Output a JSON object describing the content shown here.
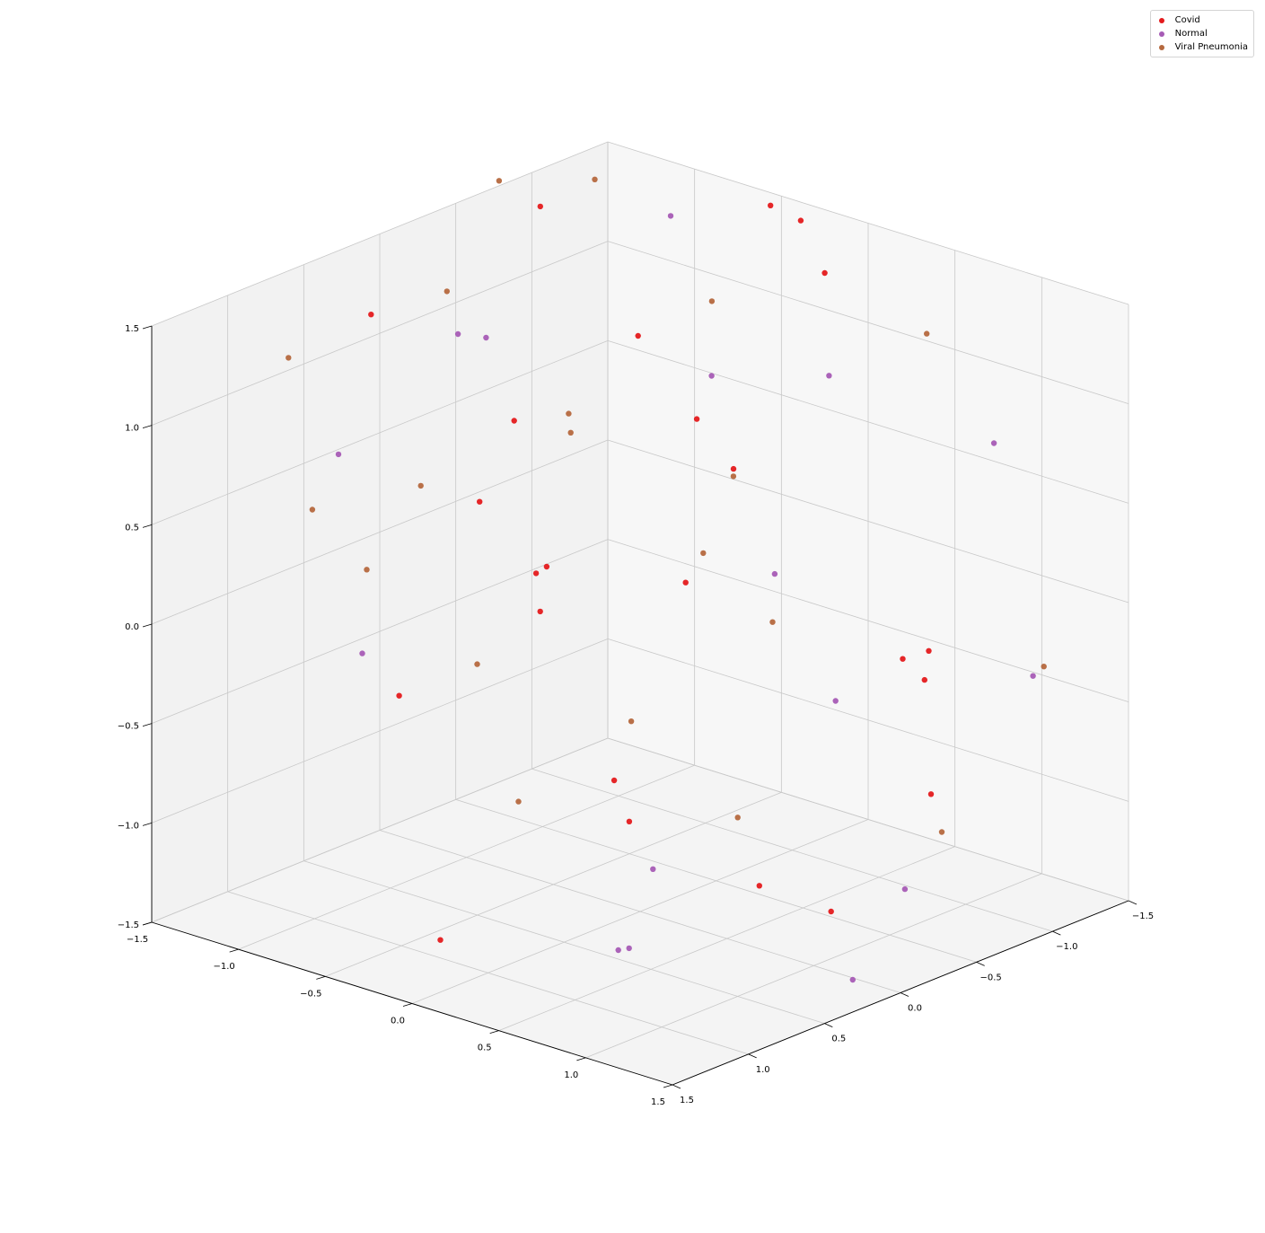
{
  "chart_data": {
    "type": "scatter",
    "projection": "3d",
    "title": "",
    "xlabel": "",
    "ylabel": "",
    "zlabel": "",
    "xlim": [
      -1.5,
      1.5
    ],
    "ylim": [
      -1.5,
      1.5
    ],
    "zlim": [
      -1.5,
      1.5
    ],
    "xticks": [
      "−1.5",
      "−1.0",
      "−0.5",
      "0.0",
      "0.5",
      "1.0",
      "1.5"
    ],
    "yticks": [
      "−1.5",
      "−1.0",
      "−0.5",
      "0.0",
      "0.5",
      "1.0",
      "1.5"
    ],
    "zticks": [
      "−1.5",
      "−1.0",
      "−0.5",
      "0.0",
      "0.5",
      "1.0",
      "1.5"
    ],
    "grid": true,
    "legend_position": "top-right",
    "series": [
      {
        "name": "Covid",
        "color": "#e41a1c",
        "points": [
          [
            -1.2,
            -0.3,
            1.6
          ],
          [
            -0.6,
            0.4,
            1.9
          ],
          [
            0.2,
            -0.4,
            2.0
          ],
          [
            -1.1,
            0.1,
            1.4
          ],
          [
            -0.9,
            -0.8,
            0.9
          ],
          [
            0.6,
            -0.2,
            1.1
          ],
          [
            1.0,
            0.3,
            0.4
          ],
          [
            -1.4,
            -0.9,
            0.3
          ],
          [
            -0.2,
            -1.1,
            0.2
          ],
          [
            0.5,
            0.7,
            0.5
          ],
          [
            -0.7,
            0.9,
            -0.2
          ],
          [
            0.9,
            -0.6,
            -0.3
          ],
          [
            -1.3,
            0.5,
            -0.6
          ],
          [
            0.3,
            0.2,
            -0.9
          ],
          [
            -0.4,
            -0.5,
            -1.1
          ],
          [
            1.2,
            -0.1,
            -1.3
          ],
          [
            -1.0,
            0.8,
            -1.0
          ],
          [
            0.0,
            1.1,
            -1.2
          ],
          [
            0.7,
            1.3,
            -0.8
          ],
          [
            -0.3,
            1.4,
            0.1
          ],
          [
            0.4,
            -1.2,
            1.3
          ],
          [
            -0.8,
            -1.3,
            -0.4
          ],
          [
            1.3,
            0.6,
            0.8
          ],
          [
            -0.5,
            0.1,
            0.6
          ]
        ]
      },
      {
        "name": "Normal",
        "color": "#a65bb5",
        "points": [
          [
            -1.0,
            -0.7,
            1.5
          ],
          [
            0.9,
            1.2,
            1.8
          ],
          [
            -1.3,
            0.9,
            0.7
          ],
          [
            0.2,
            1.4,
            -1.4
          ],
          [
            -0.6,
            1.0,
            -1.3
          ],
          [
            1.1,
            0.9,
            -1.1
          ],
          [
            -1.4,
            -0.1,
            -0.9
          ],
          [
            0.5,
            -1.3,
            0.6
          ],
          [
            -0.2,
            0.6,
            0.3
          ],
          [
            0.8,
            -0.9,
            -0.2
          ],
          [
            -0.9,
            0.3,
            1.0
          ],
          [
            1.4,
            1.3,
            -0.5
          ],
          [
            0.1,
            -0.8,
            1.2
          ],
          [
            -1.1,
            1.3,
            -0.3
          ],
          [
            0.6,
            0.4,
            -1.4
          ],
          [
            -0.4,
            -1.4,
            0.9
          ]
        ]
      },
      {
        "name": "Viral Pneumonia",
        "color": "#b5683e",
        "points": [
          [
            -0.1,
            -0.9,
            1.9
          ],
          [
            0.7,
            -0.5,
            1.7
          ],
          [
            -1.2,
            0.6,
            1.2
          ],
          [
            1.1,
            -0.3,
            0.9
          ],
          [
            -0.7,
            -0.2,
            1.3
          ],
          [
            0.3,
            0.8,
            1.0
          ],
          [
            -1.4,
            1.1,
            -0.4
          ],
          [
            0.9,
            -1.1,
            0.5
          ],
          [
            -0.5,
            1.3,
            -0.9
          ],
          [
            1.3,
            0.2,
            0.2
          ],
          [
            -0.9,
            -1.2,
            0.4
          ],
          [
            0.0,
            -0.4,
            0.8
          ],
          [
            0.5,
            1.0,
            -0.6
          ],
          [
            -1.1,
            -0.6,
            -0.2
          ],
          [
            1.2,
            1.0,
            0.1
          ],
          [
            -0.3,
            0.5,
            0.0
          ],
          [
            0.8,
            0.0,
            -0.7
          ],
          [
            -1.3,
            -1.4,
            1.4
          ],
          [
            0.2,
            -1.4,
            -0.1
          ],
          [
            1.4,
            -0.8,
            1.5
          ]
        ]
      }
    ]
  }
}
